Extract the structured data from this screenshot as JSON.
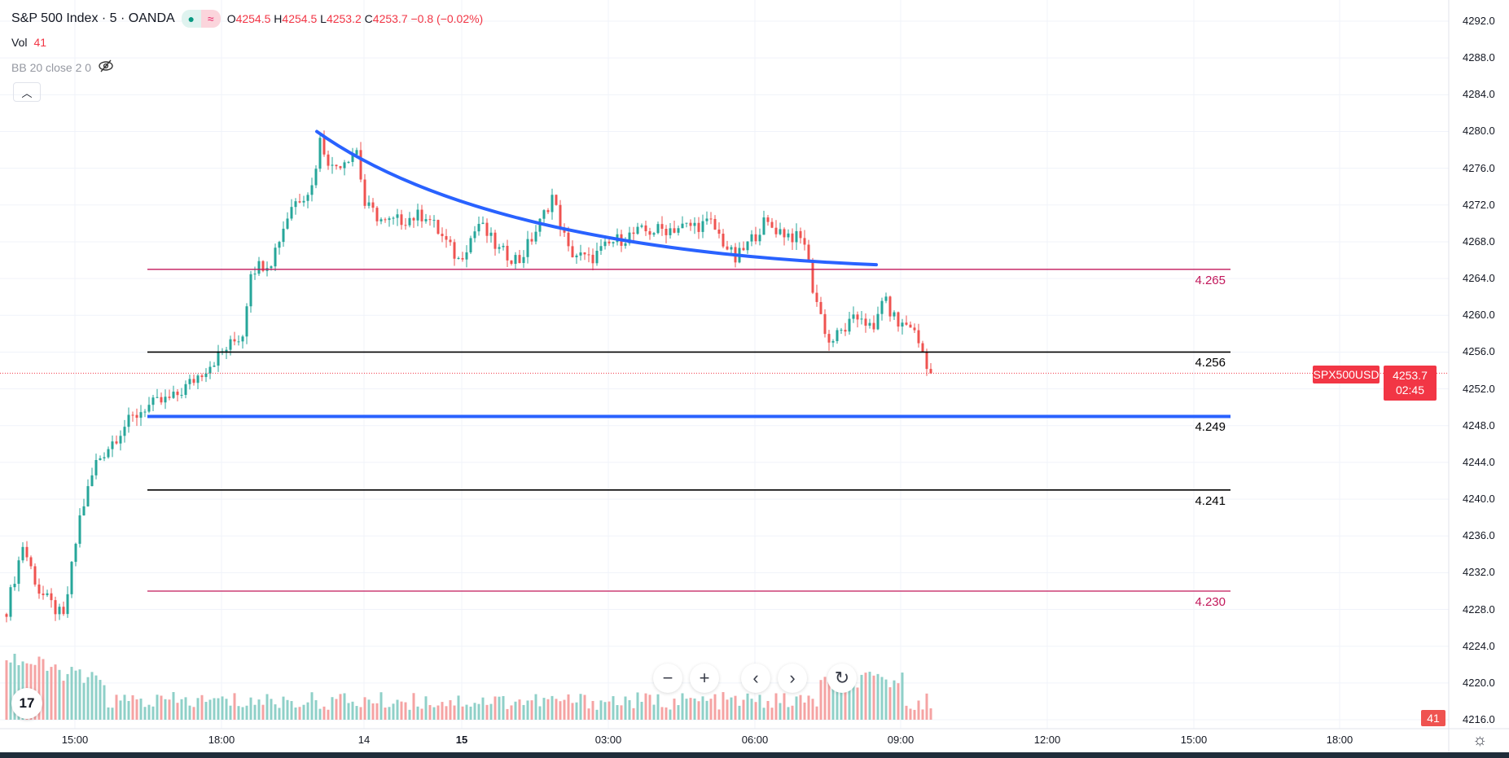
{
  "legend": {
    "title": "S&P 500 Index · 5 · OANDA",
    "ohlc": {
      "o_label": "O",
      "o": "4254.5",
      "h_label": "H",
      "h": "4254.5",
      "l_label": "L",
      "l": "4253.2",
      "c_label": "C",
      "c": "4253.7",
      "change": "−0.8 (−0.02%)"
    },
    "vol_label": "Vol",
    "vol_value": "41",
    "indicator": "BB 20 close 2 0",
    "market_status_icon": "dot-icon",
    "delayed_icon": "approx-icon"
  },
  "price_axis": {
    "labels": [
      "4292.0",
      "4288.0",
      "4284.0",
      "4280.0",
      "4276.0",
      "4272.0",
      "4268.0",
      "4264.0",
      "4260.0",
      "4256.0",
      "4252.0",
      "4248.0",
      "4244.0",
      "4240.0",
      "4236.0",
      "4232.0",
      "4228.0",
      "4224.0",
      "4220.0",
      "4216.0"
    ],
    "symbol_tag": "SPX500USD",
    "last_price": "4253.7",
    "countdown": "02:45",
    "volume_tag": "41"
  },
  "time_axis": {
    "labels": [
      "15:00",
      "18:00",
      "14",
      "15",
      "03:00",
      "06:00",
      "09:00",
      "12:00",
      "15:00",
      "18:00"
    ]
  },
  "levels": [
    {
      "value": 4265,
      "label": "4.265",
      "color": "#c2185b"
    },
    {
      "value": 4256,
      "label": "4.256",
      "color": "#000000"
    },
    {
      "value": 4249,
      "label": "4.249",
      "color": "#2962ff"
    },
    {
      "value": 4241,
      "label": "4.241",
      "color": "#000000"
    },
    {
      "value": 4230,
      "label": "4.230",
      "color": "#c2185b"
    }
  ],
  "chart_data": {
    "type": "candlestick",
    "price_range": [
      4215,
      4294
    ],
    "close_waypoints": [
      [
        0,
        4228
      ],
      [
        4,
        4235
      ],
      [
        8,
        4230
      ],
      [
        14,
        4227
      ],
      [
        18,
        4238
      ],
      [
        22,
        4244
      ],
      [
        29,
        4248
      ],
      [
        34,
        4250
      ],
      [
        41,
        4251
      ],
      [
        46,
        4253
      ],
      [
        53,
        4256
      ],
      [
        58,
        4258
      ],
      [
        60,
        4265
      ],
      [
        65,
        4266
      ],
      [
        70,
        4272
      ],
      [
        75,
        4274
      ],
      [
        77,
        4279
      ],
      [
        80,
        4276
      ],
      [
        86,
        4278
      ],
      [
        88,
        4272
      ],
      [
        93,
        4270
      ],
      [
        103,
        4271
      ],
      [
        111,
        4266
      ],
      [
        116,
        4270
      ],
      [
        121,
        4267
      ],
      [
        126,
        4266
      ],
      [
        131,
        4270
      ],
      [
        134,
        4273
      ],
      [
        138,
        4267
      ],
      [
        143,
        4266
      ],
      [
        149,
        4268
      ],
      [
        155,
        4269
      ],
      [
        164,
        4269.5
      ],
      [
        173,
        4270
      ],
      [
        179,
        4266
      ],
      [
        186,
        4270
      ],
      [
        196,
        4268
      ],
      [
        198,
        4263
      ],
      [
        202,
        4257
      ],
      [
        207,
        4259
      ],
      [
        210,
        4260
      ],
      [
        213,
        4258
      ],
      [
        215,
        4262
      ],
      [
        219,
        4259
      ],
      [
        222,
        4259
      ],
      [
        225,
        4256
      ],
      [
        227,
        4253.7
      ]
    ],
    "last_close": 4253.7,
    "trend_curve": {
      "start_price": 4280,
      "end_price": 4265.5
    },
    "colors": {
      "up": "#26a69a",
      "down": "#ef5350",
      "up_vol": "#8fd0c8",
      "down_vol": "#f5a3a3"
    }
  },
  "nav": {
    "zoom_out": "−",
    "zoom_in": "+",
    "left": "‹",
    "right": "›",
    "reset": "↻"
  },
  "logo_text": "17"
}
